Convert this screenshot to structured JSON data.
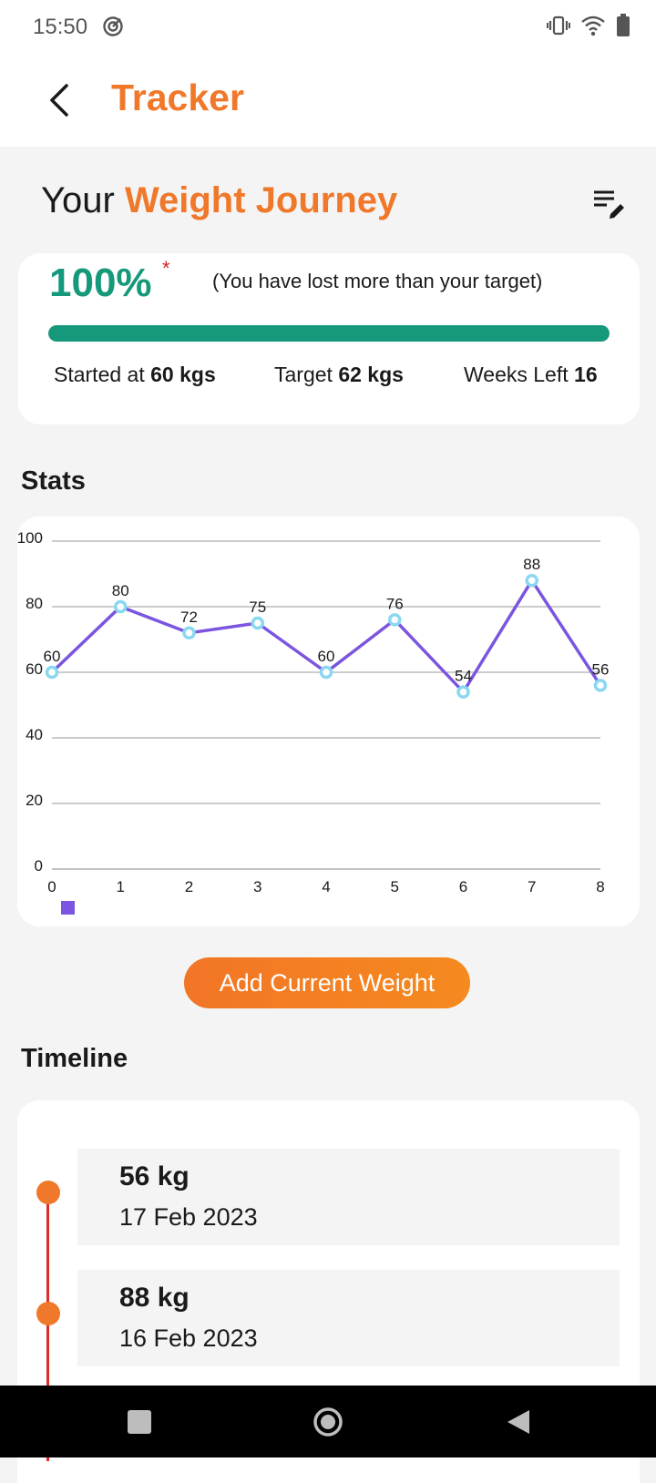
{
  "status_bar": {
    "time": "15:50"
  },
  "app_bar": {
    "title": "Tracker"
  },
  "journey": {
    "title_prefix": "Your",
    "title_accent": "Weight Journey",
    "percent_text": "100%",
    "percent_fraction": 1.0,
    "asterisk": "*",
    "note": "(You have lost more than your target)",
    "started_label": "Started at",
    "started_value": "60 kgs",
    "target_label": "Target",
    "target_value": "62 kgs",
    "weeks_label": "Weeks Left",
    "weeks_value": "16"
  },
  "stats": {
    "title": "Stats"
  },
  "chart_data": {
    "type": "line",
    "x": [
      0,
      1,
      2,
      3,
      4,
      5,
      6,
      7,
      8
    ],
    "y": [
      60,
      80,
      72,
      75,
      60,
      76,
      54,
      88,
      56
    ],
    "data_labels": [
      "60",
      "80",
      "72",
      "75",
      "60",
      "76",
      "54",
      "88",
      "56"
    ],
    "x_ticks": [
      "0",
      "1",
      "2",
      "3",
      "4",
      "5",
      "6",
      "7",
      "8"
    ],
    "y_ticks": [
      "0",
      "20",
      "40",
      "60",
      "80",
      "100"
    ],
    "xlim": [
      0,
      8
    ],
    "ylim": [
      0,
      100
    ],
    "grid": true,
    "legend_placement": "bottom-left",
    "series_color": "#7b55e0",
    "point_color": "#8ad8f0"
  },
  "cta": {
    "label": "Add Current Weight"
  },
  "timeline": {
    "title": "Timeline",
    "entries": [
      {
        "weight": "56 kg",
        "date": "17 Feb 2023"
      },
      {
        "weight": "88 kg",
        "date": "16 Feb 2023"
      }
    ]
  },
  "icons": {
    "back": "arrow-back-icon",
    "edit": "edit-list-icon",
    "vibrate": "vibrate-icon",
    "wifi": "wifi-icon",
    "battery": "battery-icon",
    "sync": "sync-icon"
  },
  "colors": {
    "accent": "#f0782a",
    "progress": "#15997a",
    "timeline_line": "#e02b2b"
  }
}
